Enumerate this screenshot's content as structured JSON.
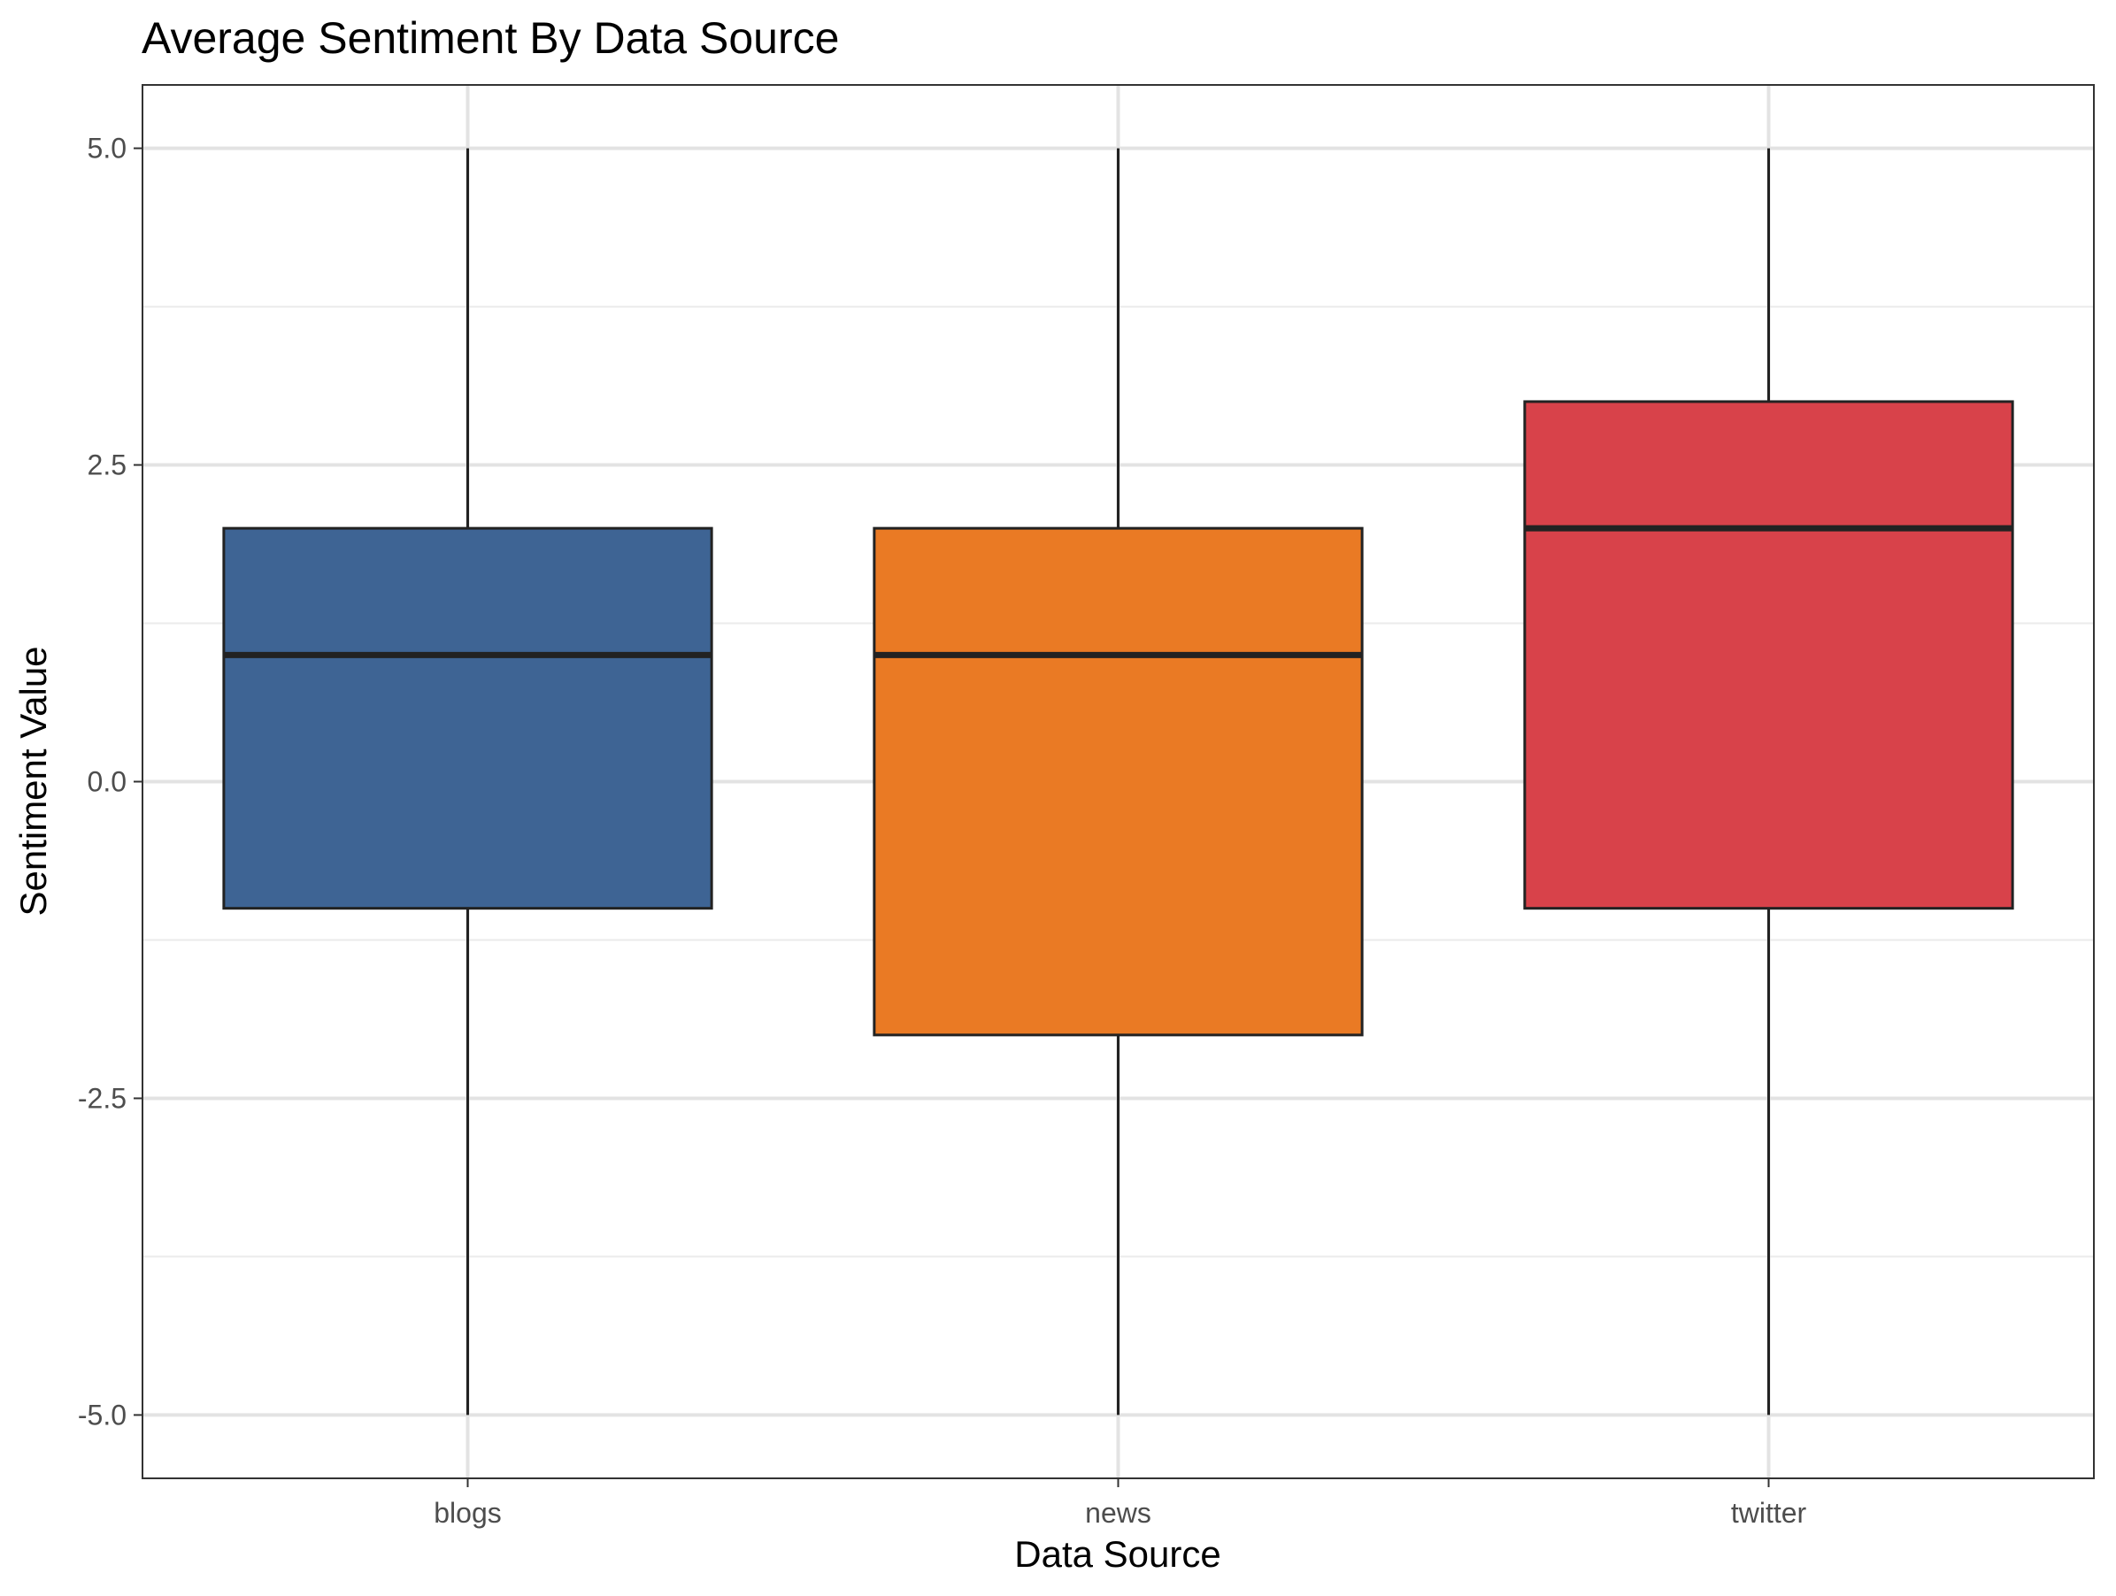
{
  "chart_data": {
    "type": "boxplot",
    "title": "Average Sentiment By Data Source",
    "xlabel": "Data Source",
    "ylabel": "Sentiment Value",
    "ylim": [
      -5.5,
      5.5
    ],
    "y_ticks": [
      -5.0,
      -2.5,
      0.0,
      2.5,
      5.0
    ],
    "y_tick_labels": [
      "-5.0",
      "-2.5",
      "0.0",
      "2.5",
      "5.0"
    ],
    "y_minor_ticks": [
      -3.75,
      -1.25,
      1.25,
      3.75
    ],
    "grid": true,
    "legend": "none",
    "categories": [
      "blogs",
      "news",
      "twitter"
    ],
    "boxes": [
      {
        "category": "blogs",
        "min": -5,
        "q1": -1,
        "median": 1,
        "q3": 2,
        "max": 5,
        "color": "#3e6494"
      },
      {
        "category": "news",
        "min": -5,
        "q1": -2,
        "median": 1,
        "q3": 2,
        "max": 5,
        "color": "#ea7a24"
      },
      {
        "category": "twitter",
        "min": -5,
        "q1": -1,
        "median": 2,
        "q3": 3,
        "max": 5,
        "color": "#d8424a"
      }
    ]
  }
}
